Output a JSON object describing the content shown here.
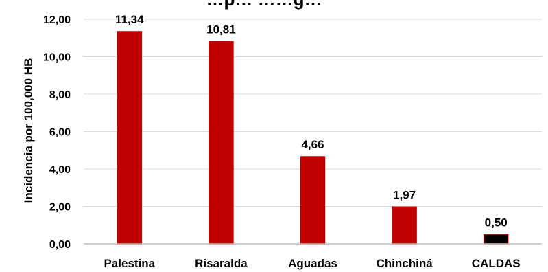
{
  "chart_data": {
    "type": "bar",
    "title": "…p… ……g…",
    "ylabel": "Incidencia por 100,000 HB",
    "xlabel": "",
    "categories": [
      "Palestina",
      "Risaralda",
      "Aguadas",
      "Chinchiná",
      "CALDAS"
    ],
    "values": [
      11.34,
      10.81,
      4.66,
      1.97,
      0.5
    ],
    "value_labels": [
      "11,34",
      "10,81",
      "4,66",
      "1,97",
      "0,50"
    ],
    "ylim": [
      0,
      12
    ],
    "yticks": [
      "0,00",
      "2,00",
      "4,00",
      "6,00",
      "8,00",
      "10,00",
      "12,00"
    ],
    "colors": [
      "#C00000",
      "#C00000",
      "#C00000",
      "#C00000",
      "#000000"
    ],
    "bar_outline": "#C00000",
    "grid": true,
    "legend": "none"
  }
}
